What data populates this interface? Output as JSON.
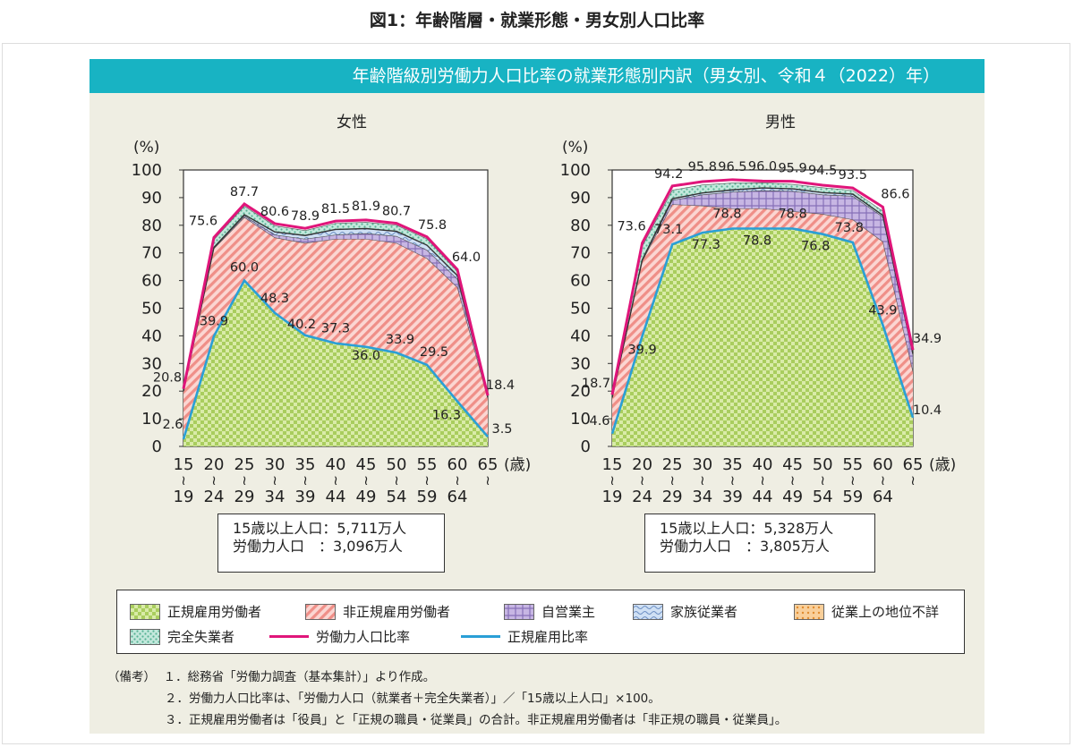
{
  "page_title": "図1：年齢階層・就業形態・男女別人口比率",
  "banner_title": "年齢階級別労働力人口比率の就業形態別内訳（男女別、令和４（2022）年）",
  "colors": {
    "banner": "#18b3c3",
    "regular_workers": "#b3d36a",
    "non_regular_workers": "#f09a94",
    "self_employed": "#b9a6d9",
    "family_workers": "#a9c6e6",
    "status_unknown": "#f3b66e",
    "unemployed": "#8fd2be",
    "participation_rate_line": "#e0157a",
    "regular_employment_rate_line": "#2a9fd6"
  },
  "chart_data": [
    {
      "type": "area",
      "title": "女性",
      "ylabel": "(%)",
      "xlabel": "(歳)",
      "ylim": [
        0,
        100
      ],
      "yticks": [
        0,
        10,
        20,
        30,
        40,
        50,
        60,
        70,
        80,
        90,
        100
      ],
      "categories": [
        "15〜19",
        "20〜24",
        "25〜29",
        "30〜34",
        "35〜39",
        "40〜44",
        "45〜49",
        "50〜54",
        "55〜59",
        "60〜64",
        "65〜"
      ],
      "x_tick_top": [
        "15",
        "20",
        "25",
        "30",
        "35",
        "40",
        "45",
        "50",
        "55",
        "60",
        "65"
      ],
      "x_tick_bottom": [
        "19",
        "24",
        "29",
        "34",
        "39",
        "44",
        "49",
        "54",
        "59",
        "64",
        ""
      ],
      "series": [
        {
          "name": "正規雇用比率",
          "values": [
            2.6,
            39.9,
            60.0,
            48.3,
            40.2,
            37.3,
            36.0,
            33.9,
            29.5,
            16.3,
            3.5
          ]
        },
        {
          "name": "非正規雇用労働者",
          "cumulative_top": [
            20.0,
            71.5,
            82.8,
            75.5,
            73.5,
            75.0,
            75.0,
            73.5,
            68.0,
            57.5,
            17.3
          ]
        },
        {
          "name": "自営業主",
          "cumulative_top": [
            20.0,
            71.8,
            83.3,
            76.5,
            75.0,
            76.5,
            77.0,
            76.0,
            71.0,
            60.5,
            17.7
          ]
        },
        {
          "name": "家族従業者",
          "cumulative_top": [
            20.0,
            72.0,
            83.8,
            77.6,
            76.3,
            78.5,
            78.8,
            77.8,
            72.8,
            61.8,
            17.9
          ]
        },
        {
          "name": "完全失業者",
          "cumulative_top": [
            20.5,
            74.8,
            86.9,
            79.8,
            78.1,
            80.7,
            81.1,
            80.0,
            75.1,
            63.3,
            18.2
          ]
        },
        {
          "name": "労働力人口比率",
          "values": [
            20.8,
            75.6,
            87.7,
            80.6,
            78.9,
            81.5,
            81.9,
            80.7,
            75.8,
            64.0,
            18.4
          ]
        }
      ],
      "labels": {
        "participation": [
          "20.8",
          "75.6",
          "87.7",
          "80.6",
          "78.9",
          "81.5",
          "81.9",
          "80.7",
          "75.8",
          "64.0",
          "18.4"
        ],
        "regular": [
          "2.6",
          "39.9",
          "60.0",
          "48.3",
          "40.2",
          "37.3",
          "36.0",
          "33.9",
          "29.5",
          "16.3",
          "3.5"
        ]
      }
    },
    {
      "type": "area",
      "title": "男性",
      "ylabel": "(%)",
      "xlabel": "(歳)",
      "ylim": [
        0,
        100
      ],
      "yticks": [
        0,
        10,
        20,
        30,
        40,
        50,
        60,
        70,
        80,
        90,
        100
      ],
      "categories": [
        "15〜19",
        "20〜24",
        "25〜29",
        "30〜34",
        "35〜39",
        "40〜44",
        "45〜49",
        "50〜54",
        "55〜59",
        "60〜64",
        "65〜"
      ],
      "x_tick_top": [
        "15",
        "20",
        "25",
        "30",
        "35",
        "40",
        "45",
        "50",
        "55",
        "60",
        "65"
      ],
      "x_tick_bottom": [
        "19",
        "24",
        "29",
        "34",
        "39",
        "44",
        "49",
        "54",
        "59",
        "64",
        ""
      ],
      "series": [
        {
          "name": "正規雇用比率",
          "values": [
            4.6,
            39.9,
            73.1,
            77.3,
            78.8,
            78.8,
            78.8,
            76.8,
            73.8,
            43.9,
            10.4
          ]
        },
        {
          "name": "非正規雇用労働者",
          "cumulative_top": [
            17.5,
            67.0,
            87.5,
            87.0,
            86.0,
            86.0,
            85.0,
            84.0,
            82.0,
            74.0,
            27.0
          ]
        },
        {
          "name": "自営業主",
          "cumulative_top": [
            17.6,
            67.3,
            89.0,
            91.0,
            92.0,
            92.5,
            92.3,
            91.0,
            90.5,
            83.0,
            33.0
          ]
        },
        {
          "name": "家族従業者",
          "cumulative_top": [
            17.7,
            67.5,
            89.6,
            91.7,
            92.8,
            93.5,
            93.2,
            91.8,
            91.3,
            83.6,
            33.6
          ]
        },
        {
          "name": "完全失業者",
          "cumulative_top": [
            18.2,
            72.4,
            92.7,
            94.6,
            95.3,
            95.4,
            94.8,
            93.6,
            92.6,
            85.1,
            34.5
          ]
        },
        {
          "name": "労働力人口比率",
          "values": [
            18.7,
            73.6,
            94.2,
            95.8,
            96.5,
            96.0,
            95.9,
            94.5,
            93.5,
            86.6,
            34.9
          ]
        }
      ],
      "labels": {
        "participation": [
          "18.7",
          "73.6",
          "94.2",
          "95.8",
          "96.5",
          "96.0",
          "95.9",
          "94.5",
          "93.5",
          "86.6",
          "34.9"
        ],
        "regular": [
          "4.6",
          "39.9",
          "73.1",
          "77.3",
          "78.8",
          "78.8",
          "78.8",
          "76.8",
          "73.8",
          "43.9",
          "10.4"
        ]
      }
    }
  ],
  "population_boxes": {
    "female": {
      "over15_label": "15歳以上人口：",
      "over15_value": "5,711万人",
      "labor_label": "労働力人口　：",
      "labor_value": "3,096万人"
    },
    "male": {
      "over15_label": "15歳以上人口：",
      "over15_value": "5,328万人",
      "labor_label": "労働力人口　：",
      "labor_value": "3,805万人"
    }
  },
  "legend": {
    "regular_workers": "正規雇用労働者",
    "non_regular_workers": "非正規雇用労働者",
    "self_employed": "自営業主",
    "family_workers": "家族従業者",
    "status_unknown": "従業上の地位不詳",
    "unemployed": "完全失業者",
    "participation_rate": "労働力人口比率",
    "regular_employment_rate": "正規雇用比率"
  },
  "notes": {
    "prefix": "（備考）",
    "note1": "１．総務省「労働力調査（基本集計）」より作成。",
    "note2": "２．労働力人口比率は、「労働力人口（就業者＋完全失業者）」／「15歳以上人口」×100。",
    "note3": "３．正規雇用労働者は「役員」と「正規の職員・従業員」の合計。非正規雇用労働者は「非正規の職員・従業員」。"
  }
}
